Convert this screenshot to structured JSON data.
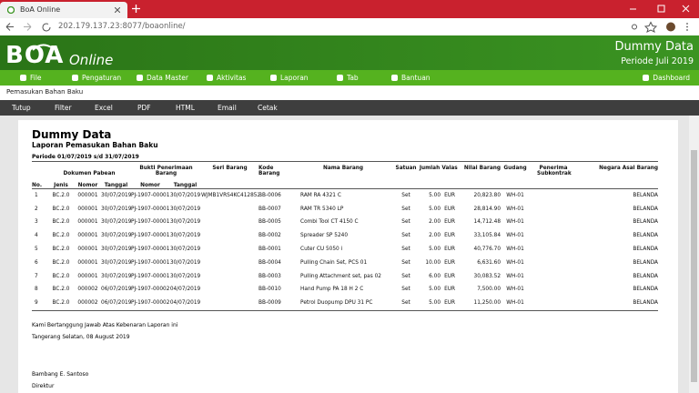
{
  "browser": {
    "tab_title": "BoA Online",
    "url": "202.179.137.23:8077/boaonline/"
  },
  "header": {
    "logo": "BOA",
    "logo_sub": "Online",
    "company": "Dummy Data",
    "period": "Periode Juli 2019"
  },
  "menu": [
    "File",
    "Pengaturan",
    "Data Master",
    "Aktivitas",
    "Laporan",
    "Tab",
    "Bantuan"
  ],
  "menu_right": "Dashboard",
  "breadcrumb": "Pemasukan Bahan Baku",
  "toolbar": [
    "Tutup",
    "Filter",
    "Excel",
    "PDF",
    "HTML",
    "Email",
    "Cetak"
  ],
  "report": {
    "title": "Dummy Data",
    "subtitle": "Laporan Pemasukan Bahan Baku",
    "period": "Periode 01/07/2019 s/d 31/07/2019",
    "headers": {
      "no": "No.",
      "dokumen_pabean": "Dokumen Pabean",
      "dp_jenis": "Jenis",
      "dp_nomor": "Nomor",
      "dp_tanggal": "Tanggal",
      "bukti": "Bukti Penerimaan Barang",
      "bp_nomor": "Nomor",
      "bp_tanggal": "Tanggal",
      "seri": "Seri Barang",
      "kode": "Kode Barang",
      "nama": "Nama Barang",
      "satuan": "Satuan",
      "jumlah": "Jumlah",
      "valas": "Valas",
      "nilai": "Nilai Barang",
      "gudang": "Gudang",
      "penerima": "Penerima Subkontrak",
      "negara": "Negara Asal Barang"
    },
    "rows": [
      [
        "1",
        "BC.2.0",
        "000001",
        "30/07/2019",
        "PJ-1907-00001",
        "30/07/2019",
        "WJMB1VRS4KC412852",
        "BB-0006",
        "RAM RA 4321 C",
        "Set",
        "5.00",
        "EUR",
        "20,823.80",
        "WH-01",
        null,
        "BELANDA"
      ],
      [
        "2",
        "BC.2.0",
        "000001",
        "30/07/2019",
        "PJ-1907-00001",
        "30/07/2019",
        null,
        "BB-0007",
        "RAM TR 5340 LP",
        "Set",
        "5.00",
        "EUR",
        "28,814.90",
        "WH-01",
        null,
        "BELANDA"
      ],
      [
        "3",
        "BC.2.0",
        "000001",
        "30/07/2019",
        "PJ-1907-00001",
        "30/07/2019",
        null,
        "BB-0005",
        "Combi Tool CT 4150 C",
        "Set",
        "2.00",
        "EUR",
        "14,712.48",
        "WH-01",
        null,
        "BELANDA"
      ],
      [
        "4",
        "BC.2.0",
        "000001",
        "30/07/2019",
        "PJ-1907-00001",
        "30/07/2019",
        null,
        "BB-0002",
        "Spreader SP 5240",
        "Set",
        "2.00",
        "EUR",
        "33,105.84",
        "WH-01",
        null,
        "BELANDA"
      ],
      [
        "5",
        "BC.2.0",
        "000001",
        "30/07/2019",
        "PJ-1907-00001",
        "30/07/2019",
        null,
        "BB-0001",
        "Cuter CU 5050 i",
        "Set",
        "5.00",
        "EUR",
        "40,776.70",
        "WH-01",
        null,
        "BELANDA"
      ],
      [
        "6",
        "BC.2.0",
        "000001",
        "30/07/2019",
        "PJ-1907-00001",
        "30/07/2019",
        null,
        "BB-0004",
        "Pulling Chain Set, PCS 01",
        "Set",
        "10.00",
        "EUR",
        "6,631.60",
        "WH-01",
        null,
        "BELANDA"
      ],
      [
        "7",
        "BC.2.0",
        "000001",
        "30/07/2019",
        "PJ-1907-00001",
        "30/07/2019",
        null,
        "BB-0003",
        "Pulling Attachment set, pas 02",
        "Set",
        "6.00",
        "EUR",
        "30,083.52",
        "WH-01",
        null,
        "BELANDA"
      ],
      [
        "8",
        "BC.2.0",
        "000002",
        "06/07/2019",
        "PJ-1907-00002",
        "04/07/2019",
        null,
        "BB-0010",
        "Hand Pump PA 18 H 2 C",
        "Set",
        "5.00",
        "EUR",
        "7,500.00",
        "WH-01",
        null,
        "BELANDA"
      ],
      [
        "9",
        "BC.2.0",
        "000002",
        "06/07/2019",
        "PJ-1907-00002",
        "04/07/2019",
        null,
        "BB-0009",
        "Petrol Duopump DPU 31 PC",
        "Set",
        "5.00",
        "EUR",
        "11,250.00",
        "WH-01",
        null,
        "BELANDA"
      ]
    ],
    "footer": {
      "statement": "Kami Bertanggung Jawab Atas Kebenaran Laporan ini",
      "place_date": "Tangerang Selatan, 08 August 2019",
      "signer": "Bambang E. Santoso",
      "position": "Direktur"
    }
  }
}
